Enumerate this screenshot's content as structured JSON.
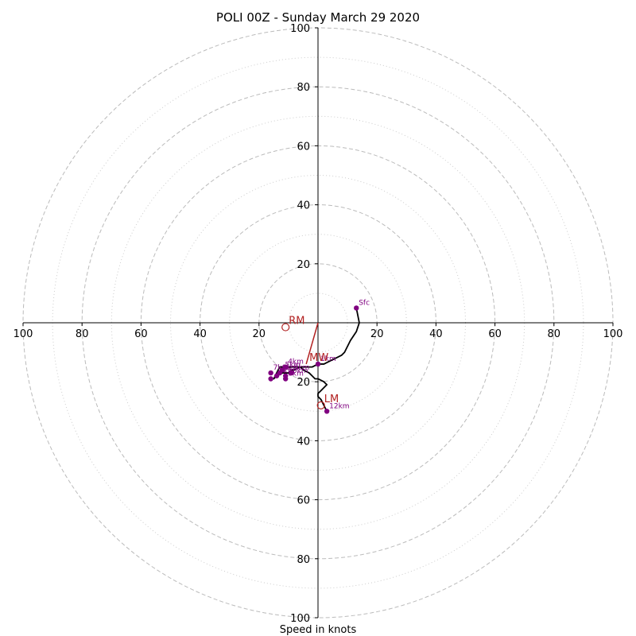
{
  "chart_data": {
    "type": "line",
    "title": "POLI 00Z - Sunday March 29 2020",
    "xlabel": "Speed in knots",
    "axis_range": [
      -100,
      100
    ],
    "rings_major": [
      20,
      40,
      60,
      80,
      100
    ],
    "rings_minor": [
      10,
      30,
      50,
      70,
      90
    ],
    "tick_values": [
      20,
      40,
      60,
      80,
      100
    ],
    "grid": true,
    "colors": {
      "hodo_line": "#000000",
      "markers": "#800080",
      "motion": "#b22222",
      "grid": "#bbbbbb"
    },
    "hodograph": {
      "u": [
        13,
        14,
        13,
        11,
        9,
        8,
        6,
        4,
        2,
        0,
        -2,
        -4,
        -6,
        -8,
        -9,
        -10,
        -11,
        -12,
        -14,
        -15,
        -14,
        -13,
        -11,
        -9,
        -8,
        -6,
        -5,
        -3,
        -2,
        -1,
        0,
        2,
        3,
        2,
        1,
        0,
        0,
        1,
        3
      ],
      "v": [
        -5,
        0,
        3,
        6,
        10,
        11,
        12,
        13,
        14,
        14,
        15,
        15,
        15,
        16,
        16,
        17,
        17,
        17,
        18,
        19,
        17,
        15,
        15,
        15,
        15,
        15,
        16,
        17,
        18,
        19,
        19,
        20,
        21,
        22,
        23,
        24,
        25,
        26,
        30
      ]
    },
    "height_markers": [
      {
        "label": "Sfc",
        "u": 13,
        "v": -5
      },
      {
        "label": "1km",
        "u": 0,
        "v": 14
      },
      {
        "label": "3km",
        "u": -9,
        "v": 17
      },
      {
        "label": "4km",
        "u": -11,
        "v": 15
      },
      {
        "label": "5km",
        "u": -12,
        "v": 16
      },
      {
        "label": "6km",
        "u": -14,
        "v": 18
      },
      {
        "label": "7km",
        "u": -16,
        "v": 17
      },
      {
        "label": "8km",
        "u": -11,
        "v": 19
      },
      {
        "label": "9km",
        "u": -13,
        "v": 17
      },
      {
        "label": "10km",
        "u": -11,
        "v": 18
      },
      {
        "label": "",
        "u": -16,
        "v": 19
      },
      {
        "label": "12km",
        "u": 3,
        "v": 30
      }
    ],
    "storm_motion": {
      "RM": {
        "label": "RM",
        "u": -11,
        "v": 1.5
      },
      "LM": {
        "label": "LM",
        "u": 1,
        "v": 28
      },
      "MW": {
        "label": "MW",
        "u": -4,
        "v": 14
      }
    }
  }
}
